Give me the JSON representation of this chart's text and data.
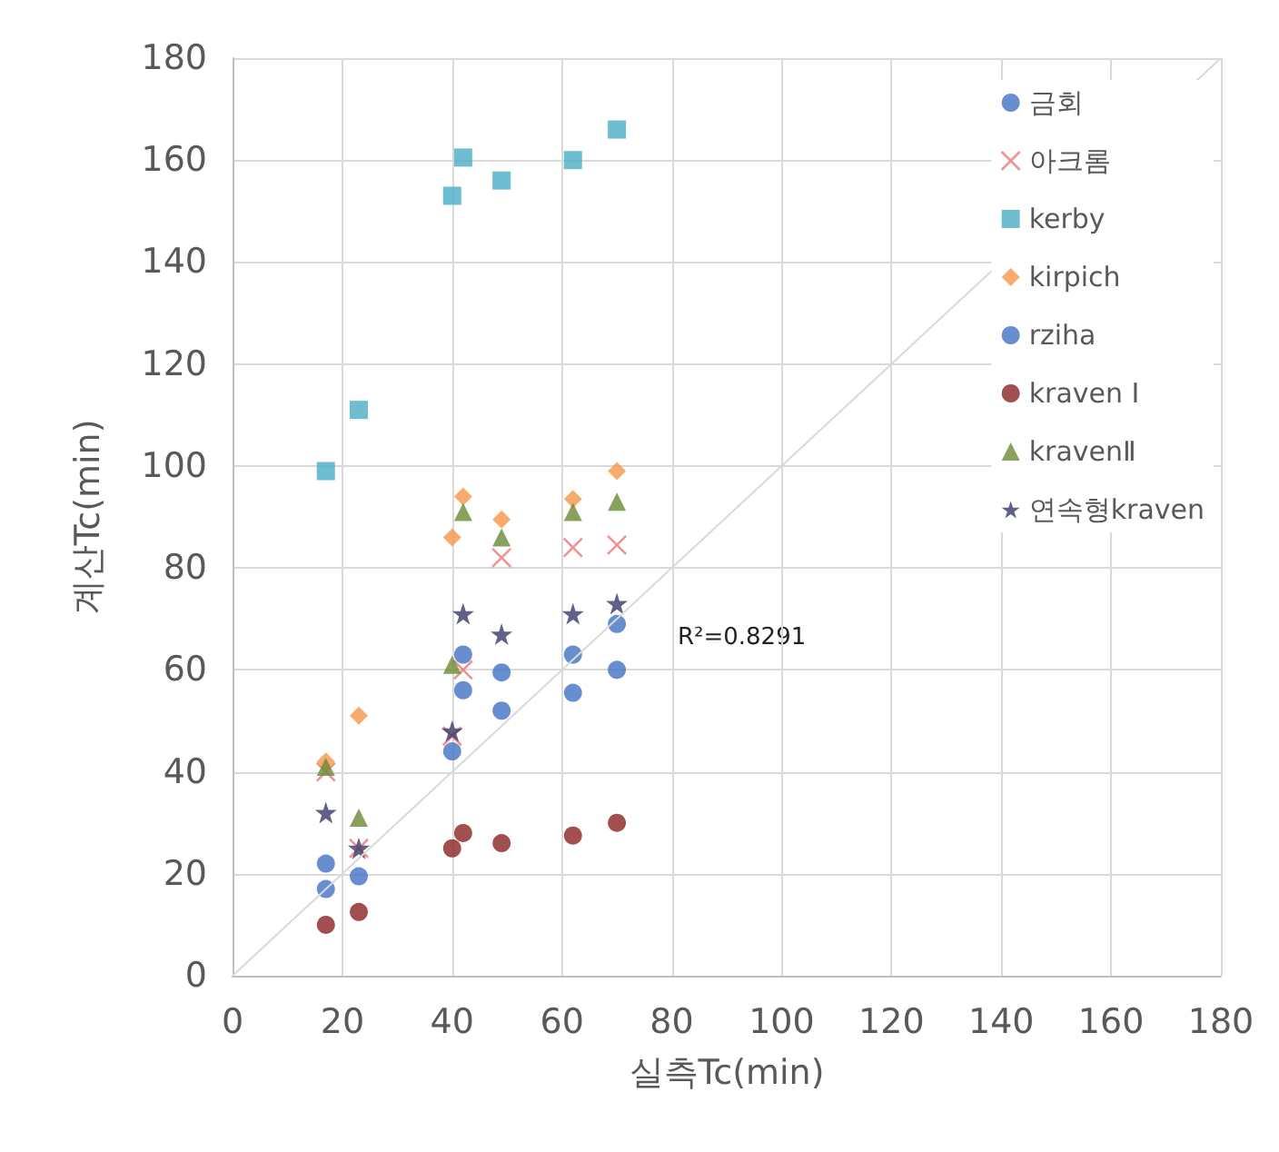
{
  "chart_data": {
    "type": "scatter",
    "xlabel": "실측Tc(min)",
    "ylabel": "계산Tc(min)",
    "xlim": [
      0,
      180
    ],
    "ylim": [
      0,
      180
    ],
    "xticks": [
      0,
      20,
      40,
      60,
      80,
      100,
      120,
      140,
      160,
      180
    ],
    "yticks": [
      0,
      20,
      40,
      60,
      80,
      100,
      120,
      140,
      160,
      180
    ],
    "grid": true,
    "legend": "top right",
    "x": [
      17,
      23,
      40,
      42,
      49,
      62,
      70
    ],
    "annotations": [
      "R²=0.8291"
    ],
    "series": [
      {
        "name": "금회",
        "color": "#4472c4",
        "marker": "circle",
        "values": [
          17,
          19.5,
          44,
          56,
          52,
          55.5,
          60
        ]
      },
      {
        "name": "아크롬",
        "color": "#e8787a",
        "marker": "cross",
        "values": [
          40,
          25,
          47,
          60,
          82,
          84,
          84.5
        ]
      },
      {
        "name": "kerby",
        "color": "#4bacc6",
        "marker": "square",
        "values": [
          99,
          111,
          153,
          160.5,
          156,
          160,
          166
        ]
      },
      {
        "name": "kirpich",
        "color": "#f79646",
        "marker": "diamond",
        "values": [
          42,
          51,
          86,
          94,
          89.5,
          93.5,
          99
        ]
      },
      {
        "name": "rziha",
        "color": "#4472c4",
        "marker": "circle",
        "values": [
          22,
          null,
          null,
          63,
          59.5,
          63,
          69
        ]
      },
      {
        "name": "kraven Ⅰ",
        "color": "#8b2323",
        "marker": "circle",
        "values": [
          10,
          12.5,
          25,
          28,
          26,
          27.5,
          30
        ]
      },
      {
        "name": "kravenⅡ",
        "color": "#6a8a35",
        "marker": "triangle",
        "values": [
          41,
          31,
          61,
          91,
          86,
          91,
          93
        ]
      },
      {
        "name": "연속형kraven",
        "color": "#3a3a6a",
        "marker": "star",
        "values": [
          32,
          25,
          48,
          71,
          67,
          71,
          73
        ]
      },
      {
        "type": "line",
        "color": "#d9d9d9",
        "marker": "none",
        "x": [
          0,
          180
        ],
        "values": [
          0,
          180
        ]
      }
    ]
  }
}
